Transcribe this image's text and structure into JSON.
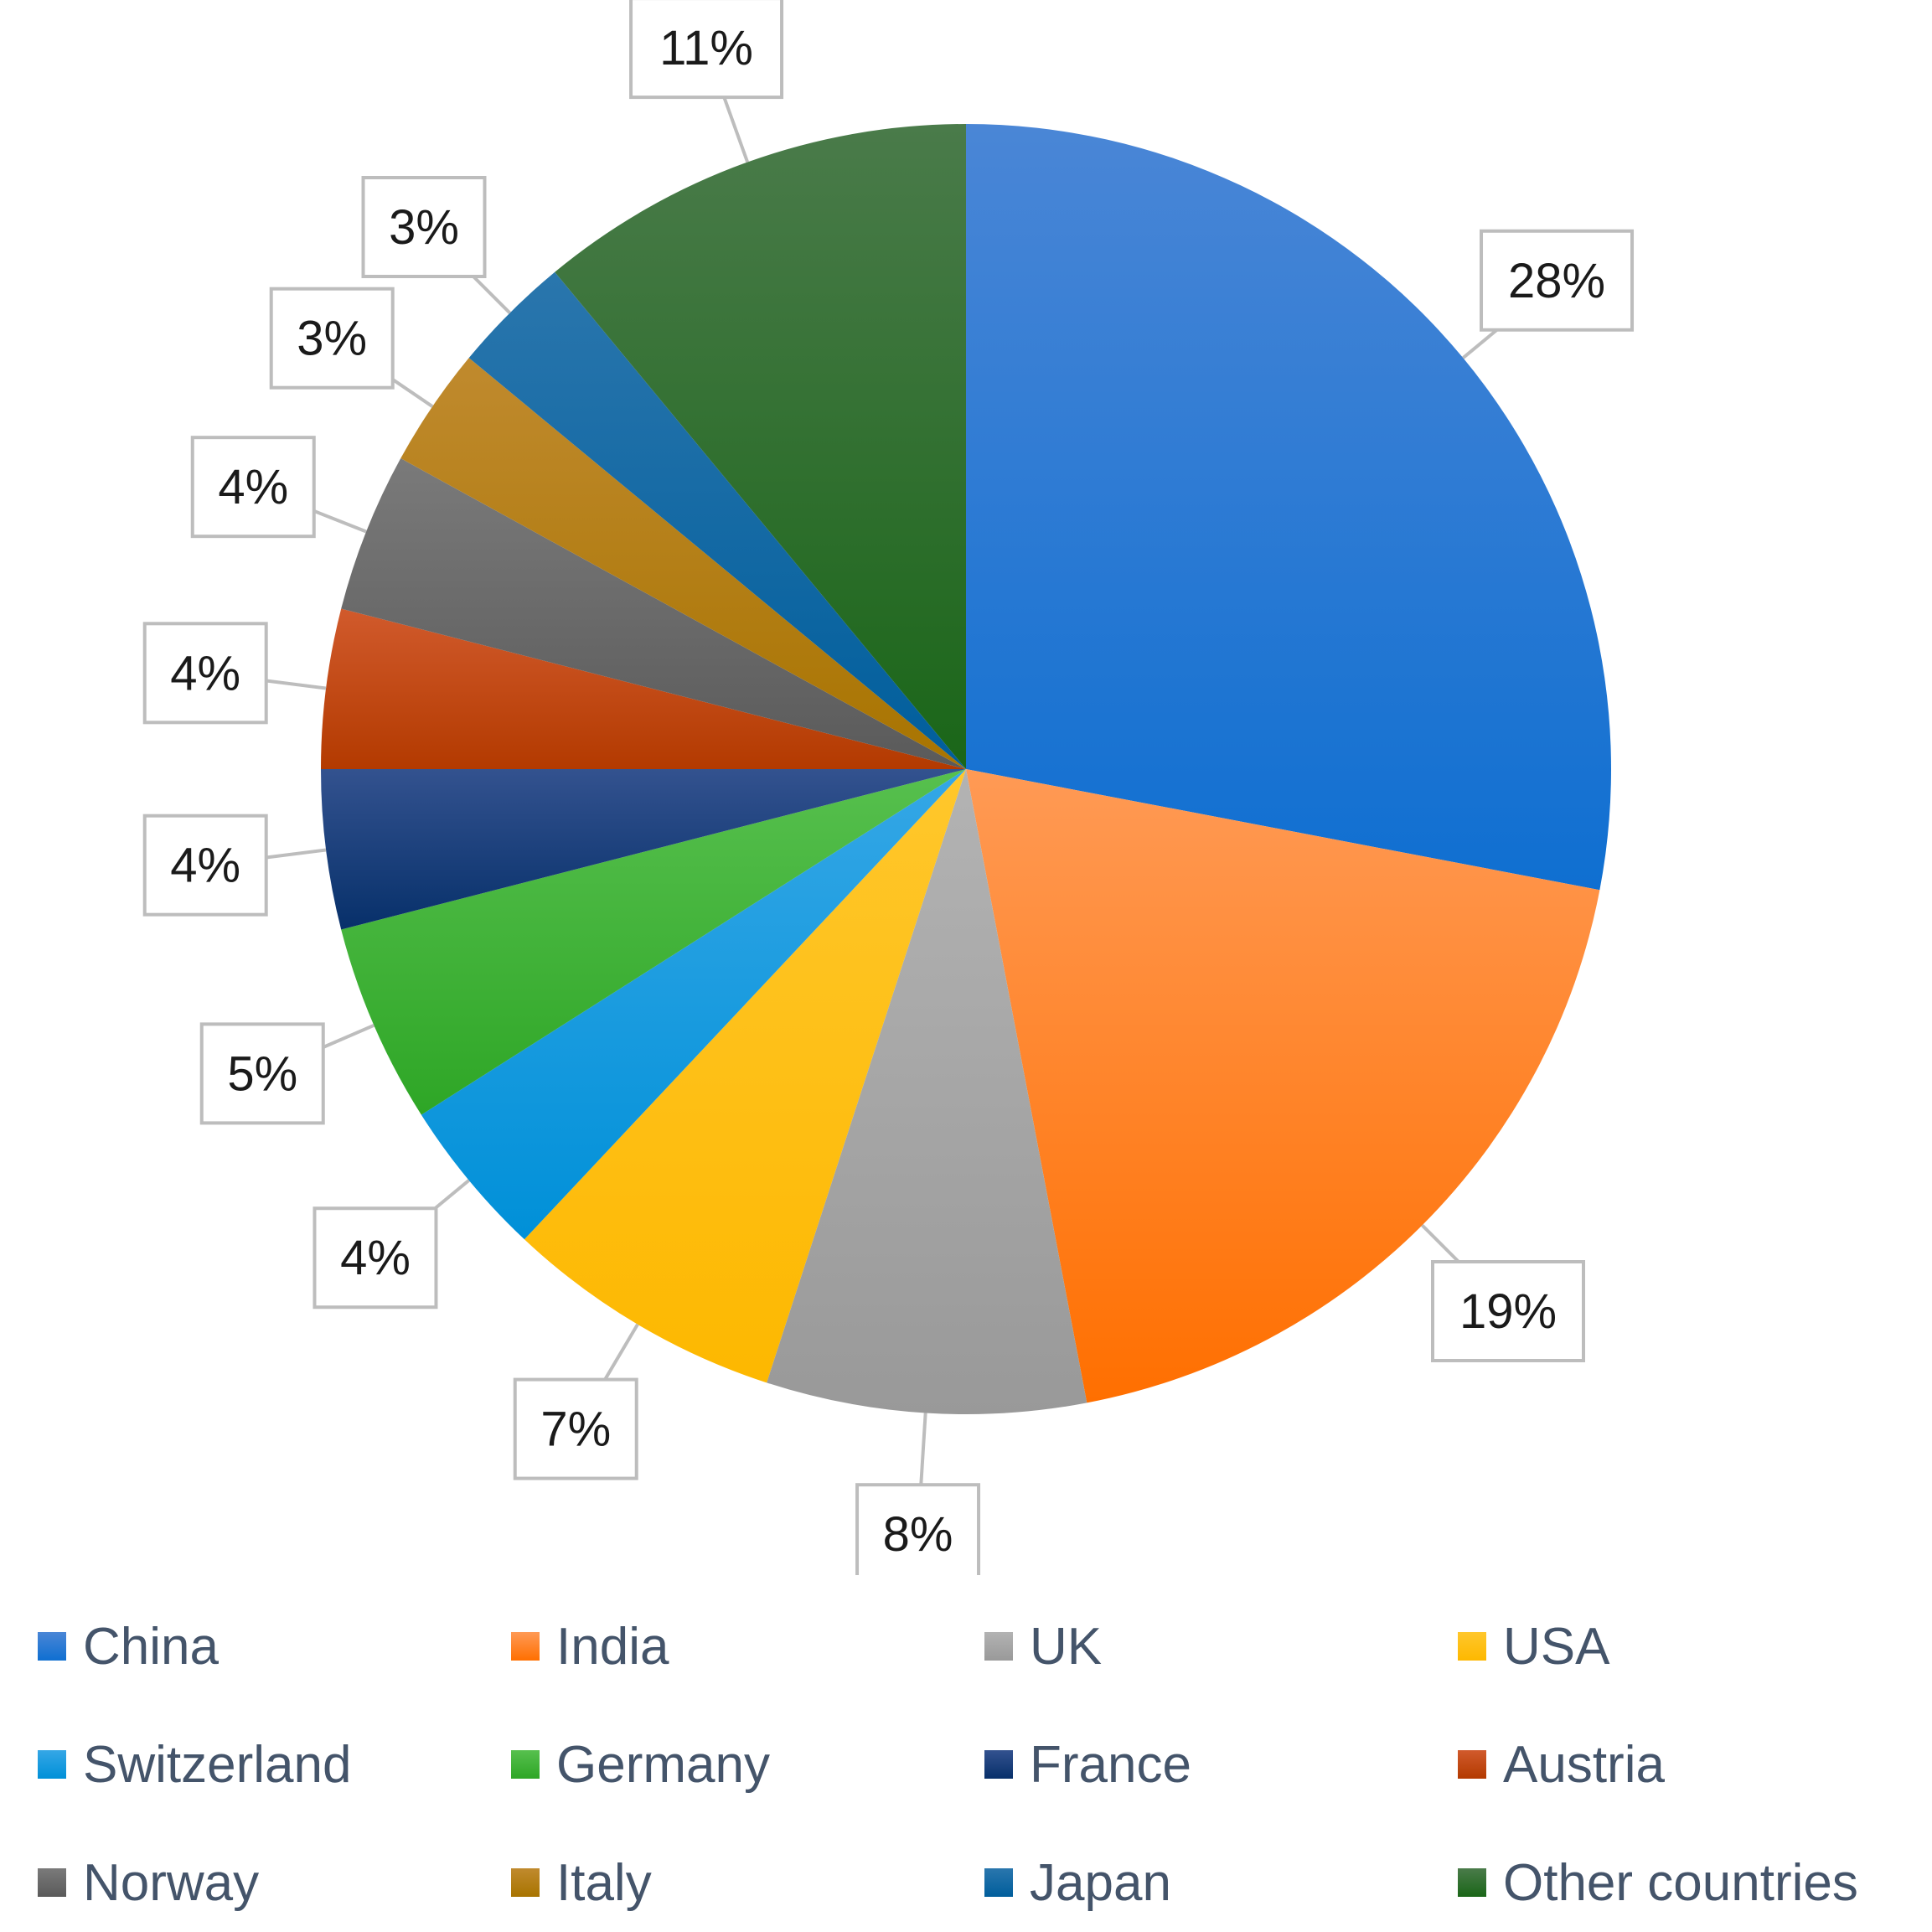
{
  "chart_data": {
    "type": "pie",
    "start_angle_deg": 0,
    "direction": "clockwise",
    "legend_position": "bottom",
    "slices": [
      {
        "label": "China",
        "value": 28,
        "display": "28%",
        "color": "#0f6fd1",
        "light": "#4a86d6"
      },
      {
        "label": "India",
        "value": 19,
        "display": "19%",
        "color": "#ff6f00",
        "light": "#ff9a55"
      },
      {
        "label": "UK",
        "value": 8,
        "display": "8%",
        "color": "#999999",
        "light": "#b3b3b3"
      },
      {
        "label": "USA",
        "value": 7,
        "display": "7%",
        "color": "#fdb800",
        "light": "#ffc72c"
      },
      {
        "label": "Switzerland",
        "value": 4,
        "display": "4%",
        "color": "#0090d8",
        "light": "#35a7e6"
      },
      {
        "label": "Germany",
        "value": 5,
        "display": "5%",
        "color": "#2ea626",
        "light": "#57c04e"
      },
      {
        "label": "France",
        "value": 4,
        "display": "4%",
        "color": "#07306a",
        "light": "#33528f"
      },
      {
        "label": "Austria",
        "value": 4,
        "display": "4%",
        "color": "#b33a00",
        "light": "#d15a2c"
      },
      {
        "label": "Norway",
        "value": 4,
        "display": "4%",
        "color": "#5a5a5a",
        "light": "#7a7a7a"
      },
      {
        "label": "Italy",
        "value": 3,
        "display": "3%",
        "color": "#a87400",
        "light": "#c08a2e"
      },
      {
        "label": "Japan",
        "value": 3,
        "display": "3%",
        "color": "#005e9c",
        "light": "#2a76ad"
      },
      {
        "label": "Other countries",
        "value": 11,
        "display": "11%",
        "color": "#1a6618",
        "light": "#4a7b4a"
      }
    ]
  }
}
